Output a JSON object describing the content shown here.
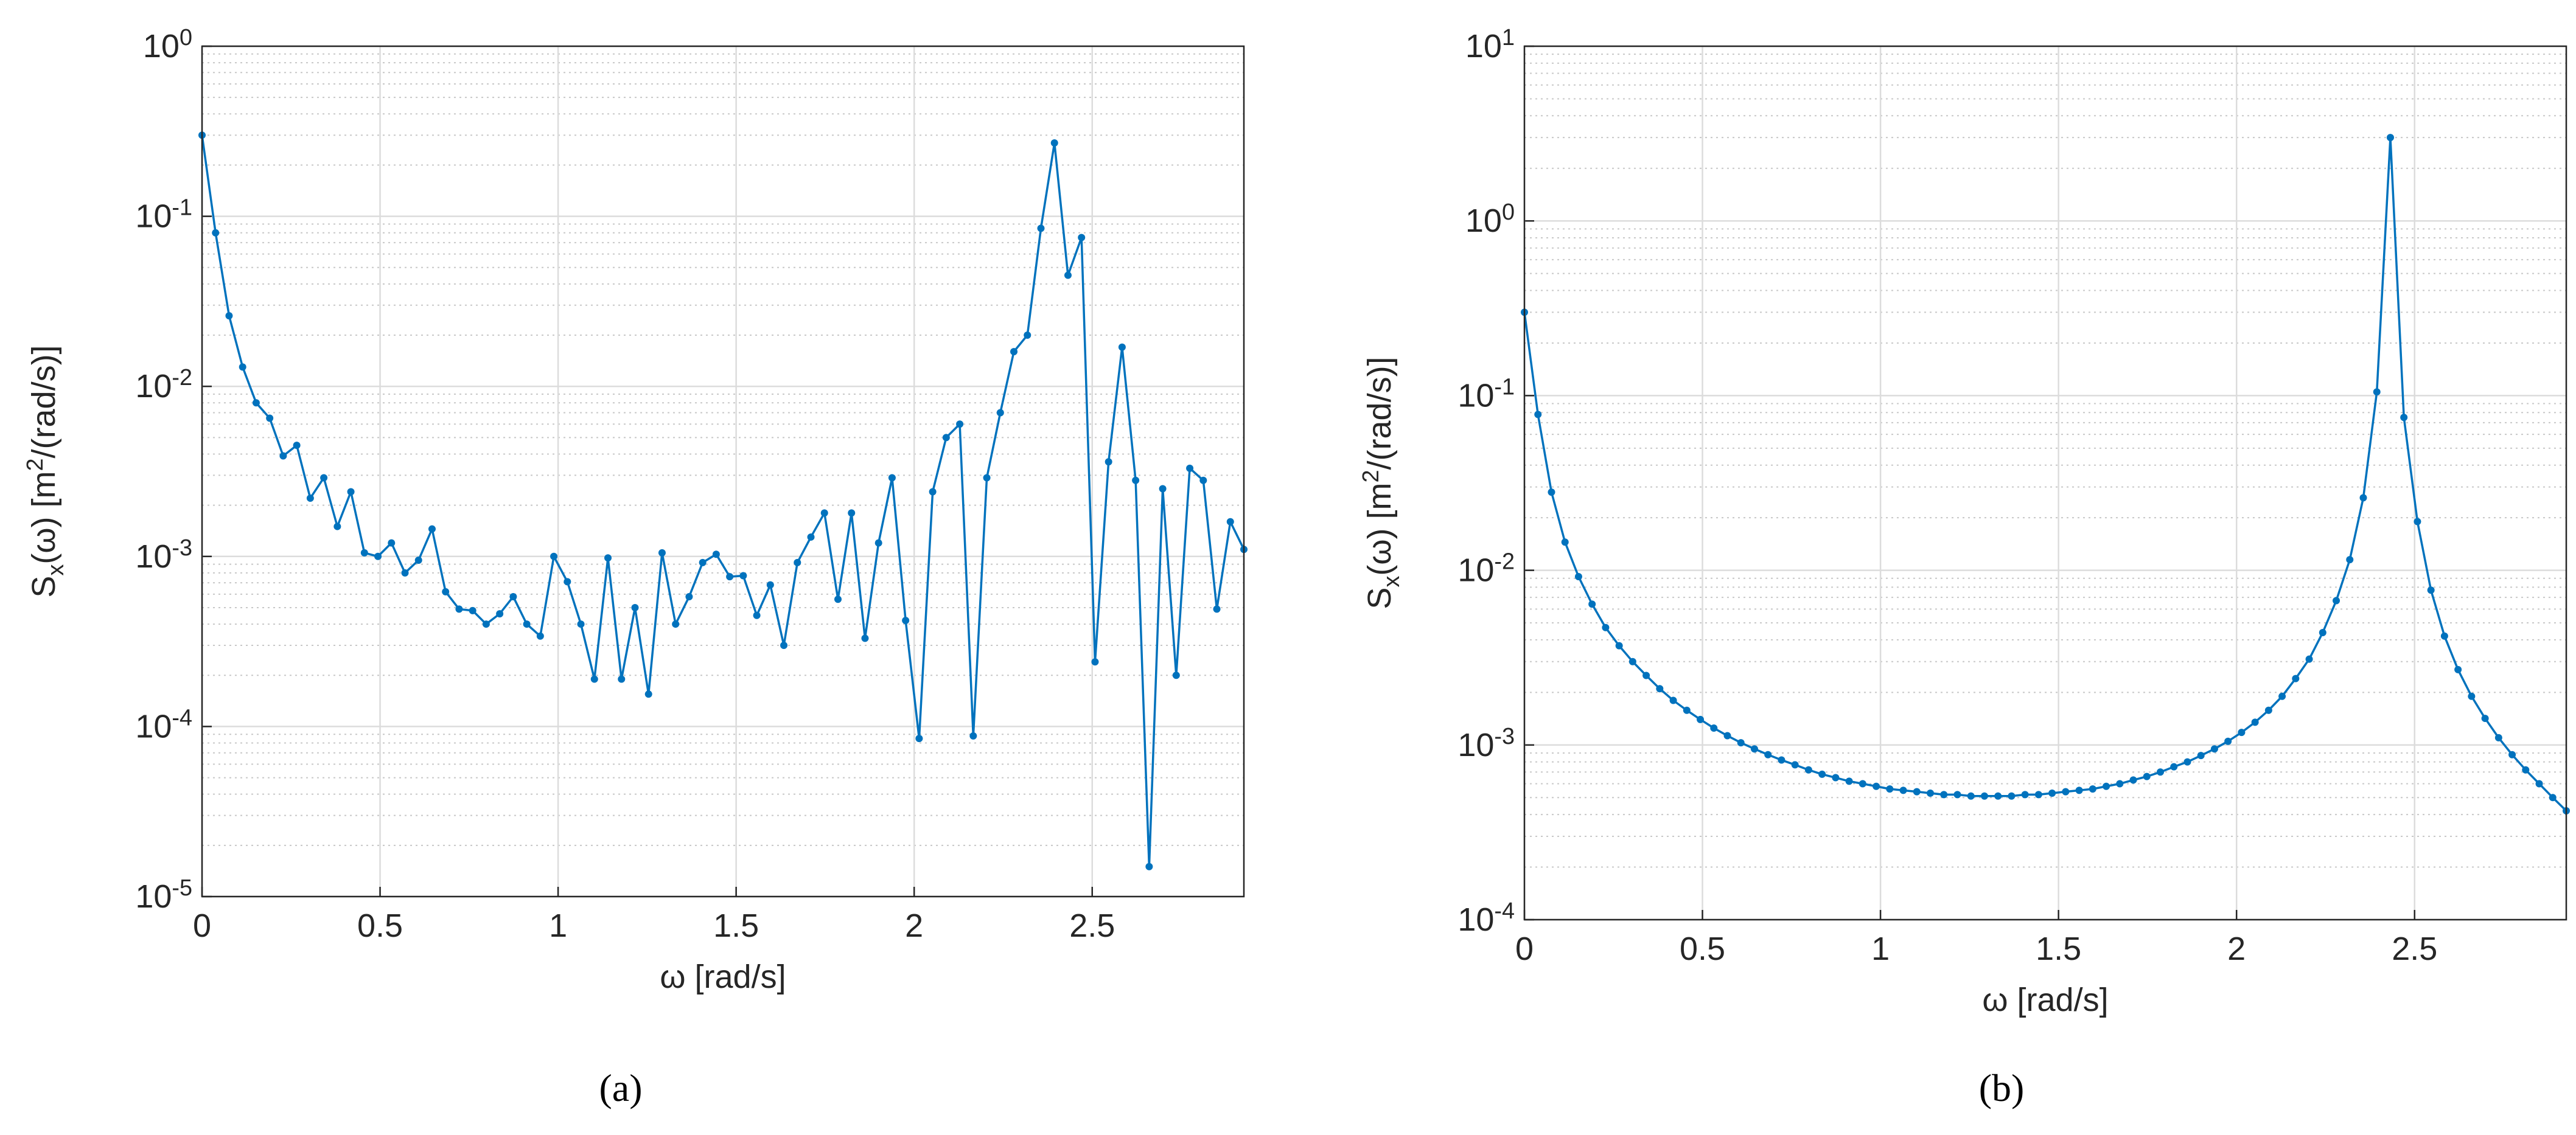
{
  "chart_data": [
    {
      "type": "line",
      "caption": "(a)",
      "x_label": "ω [rad/s]",
      "y_label": "S_x(ω)   [m^2/(rad/s)]",
      "log_y": true,
      "grid": true,
      "minor_grid": true,
      "marker": true,
      "color": "#0072bd",
      "xlim": [
        0,
        2.926
      ],
      "xticks": [
        0,
        0.5,
        1,
        1.5,
        2,
        2.5
      ],
      "ylim": [
        1e-05,
        1
      ],
      "yticks": [
        {
          "value": 1e-05,
          "label": "10^-5"
        },
        {
          "value": 0.0001,
          "label": "10^-4"
        },
        {
          "value": 0.001,
          "label": "10^-3"
        },
        {
          "value": 0.01,
          "label": "10^-2"
        },
        {
          "value": 0.1,
          "label": "10^-1"
        },
        {
          "value": 1,
          "label": "10^0"
        }
      ],
      "x": [
        0,
        0.038,
        0.076,
        0.114,
        0.152,
        0.19,
        0.228,
        0.266,
        0.304,
        0.342,
        0.38,
        0.418,
        0.456,
        0.494,
        0.532,
        0.57,
        0.608,
        0.646,
        0.684,
        0.722,
        0.76,
        0.798,
        0.836,
        0.874,
        0.912,
        0.95,
        0.988,
        1.026,
        1.064,
        1.102,
        1.14,
        1.178,
        1.216,
        1.254,
        1.292,
        1.33,
        1.368,
        1.406,
        1.444,
        1.482,
        1.52,
        1.558,
        1.596,
        1.634,
        1.672,
        1.71,
        1.748,
        1.786,
        1.824,
        1.862,
        1.9,
        1.938,
        1.976,
        2.014,
        2.052,
        2.09,
        2.128,
        2.166,
        2.204,
        2.242,
        2.28,
        2.318,
        2.356,
        2.394,
        2.432,
        2.47,
        2.508,
        2.546,
        2.584,
        2.622,
        2.66,
        2.698,
        2.736,
        2.774,
        2.812,
        2.85,
        2.888,
        2.926
      ],
      "values": [
        0.3,
        0.08,
        0.026,
        0.013,
        0.008,
        0.0065,
        0.0039,
        0.0045,
        0.0022,
        0.0029,
        0.0015,
        0.0024,
        0.00105,
        0.001,
        0.0012,
        0.0008,
        0.00095,
        0.00145,
        0.00062,
        0.00049,
        0.00048,
        0.0004,
        0.00046,
        0.00058,
        0.0004,
        0.00034,
        0.001,
        0.00071,
        0.0004,
        0.00019,
        0.00098,
        0.00019,
        0.0005,
        0.000155,
        0.00105,
        0.0004,
        0.00058,
        0.00092,
        0.00103,
        0.00076,
        0.00077,
        0.00045,
        0.00068,
        0.0003,
        0.00092,
        0.0013,
        0.0018,
        0.00056,
        0.0018,
        0.00033,
        0.0012,
        0.0029,
        0.00042,
        8.5e-05,
        0.0024,
        0.005,
        0.006,
        8.8e-05,
        0.0029,
        0.007,
        0.016,
        0.02,
        0.085,
        0.27,
        0.045,
        0.075,
        0.00024,
        0.0036,
        0.017,
        0.0028,
        1.5e-05,
        0.0025,
        0.0002,
        0.0033,
        0.0028,
        0.00049,
        0.0016,
        0.0011
      ]
    },
    {
      "type": "line",
      "caption": "(b)",
      "x_label": "ω [rad/s]",
      "y_label": "S_x(ω)   [m^2/(rad/s)]",
      "log_y": true,
      "grid": true,
      "minor_grid": true,
      "marker": true,
      "color": "#0072bd",
      "xlim": [
        0,
        2.926
      ],
      "xticks": [
        0,
        0.5,
        1,
        1.5,
        2,
        2.5
      ],
      "ylim": [
        0.0001,
        10
      ],
      "yticks": [
        {
          "value": 0.0001,
          "label": "10^-4"
        },
        {
          "value": 0.001,
          "label": "10^-3"
        },
        {
          "value": 0.01,
          "label": "10^-2"
        },
        {
          "value": 0.1,
          "label": "10^-1"
        },
        {
          "value": 1,
          "label": "10^0"
        },
        {
          "value": 10,
          "label": "10^1"
        }
      ],
      "x": [
        0,
        0.038,
        0.076,
        0.114,
        0.152,
        0.19,
        0.228,
        0.266,
        0.304,
        0.342,
        0.38,
        0.418,
        0.456,
        0.494,
        0.532,
        0.57,
        0.608,
        0.646,
        0.684,
        0.722,
        0.76,
        0.798,
        0.836,
        0.874,
        0.912,
        0.95,
        0.988,
        1.026,
        1.064,
        1.102,
        1.14,
        1.178,
        1.216,
        1.254,
        1.292,
        1.33,
        1.368,
        1.406,
        1.444,
        1.482,
        1.52,
        1.558,
        1.596,
        1.634,
        1.672,
        1.71,
        1.748,
        1.786,
        1.824,
        1.862,
        1.9,
        1.938,
        1.976,
        2.014,
        2.052,
        2.09,
        2.128,
        2.166,
        2.204,
        2.242,
        2.28,
        2.318,
        2.356,
        2.394,
        2.432,
        2.47,
        2.508,
        2.546,
        2.584,
        2.622,
        2.66,
        2.698,
        2.736,
        2.774,
        2.812,
        2.85,
        2.888,
        2.926
      ],
      "values": [
        0.3,
        0.078,
        0.028,
        0.0145,
        0.0092,
        0.0064,
        0.0047,
        0.0037,
        0.003,
        0.0025,
        0.0021,
        0.0018,
        0.00158,
        0.0014,
        0.00125,
        0.00113,
        0.00103,
        0.00095,
        0.00088,
        0.00082,
        0.00077,
        0.00072,
        0.00068,
        0.00065,
        0.00062,
        0.0006,
        0.00058,
        0.00056,
        0.00055,
        0.00054,
        0.00053,
        0.00052,
        0.00052,
        0.00051,
        0.00051,
        0.00051,
        0.00051,
        0.00052,
        0.00052,
        0.00053,
        0.00054,
        0.00055,
        0.00056,
        0.00058,
        0.0006,
        0.00063,
        0.00066,
        0.0007,
        0.00075,
        0.0008,
        0.00087,
        0.00095,
        0.00105,
        0.00118,
        0.00135,
        0.00158,
        0.0019,
        0.0024,
        0.0031,
        0.0044,
        0.0067,
        0.0115,
        0.026,
        0.105,
        3.0,
        0.075,
        0.019,
        0.0077,
        0.0042,
        0.0027,
        0.0019,
        0.00142,
        0.0011,
        0.00088,
        0.00072,
        0.0006,
        0.0005,
        0.00042
      ]
    }
  ]
}
